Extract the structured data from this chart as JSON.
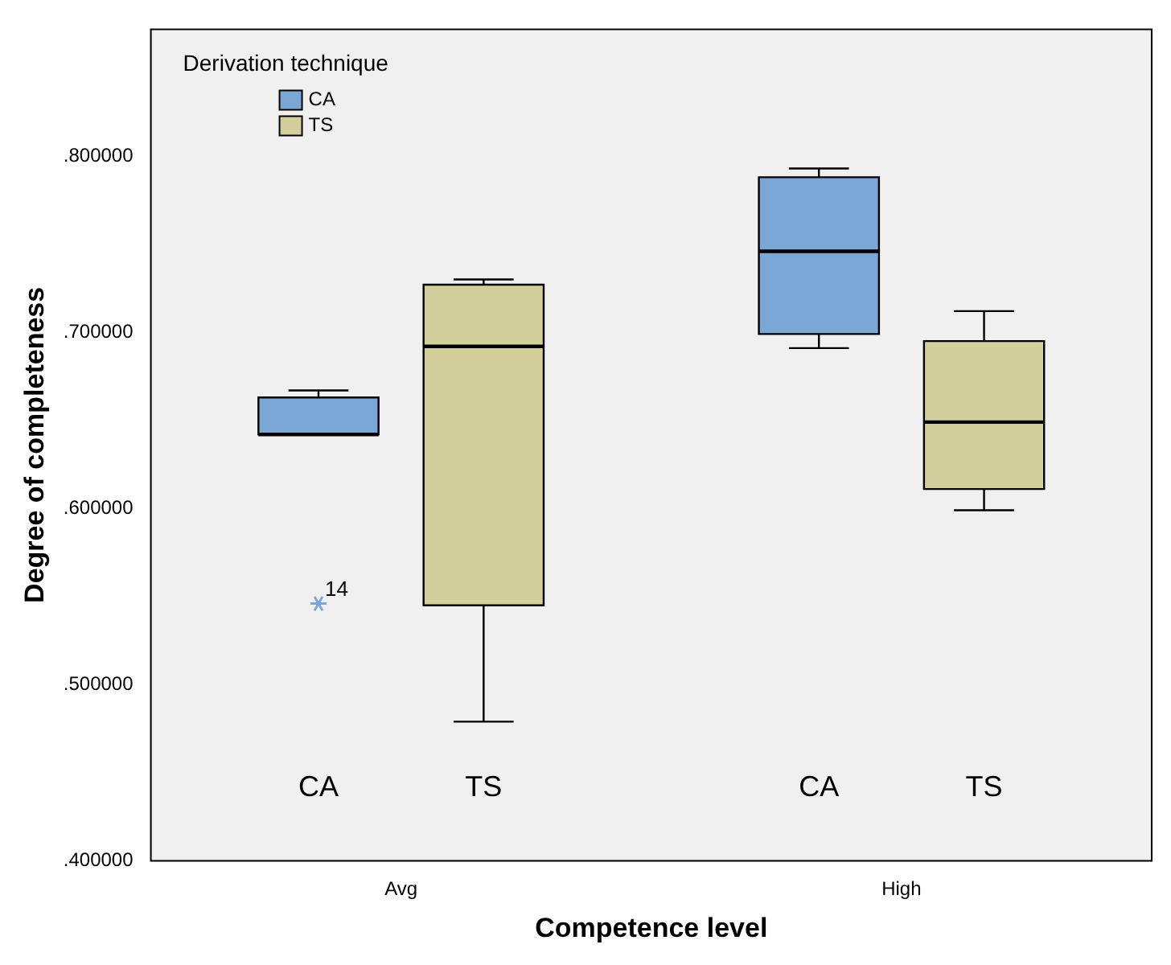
{
  "chart_data": {
    "type": "box",
    "xlabel": "Competence level",
    "ylabel": "Degree of completeness",
    "legend_title": "Derivation technique",
    "legend": "top left",
    "grid": false,
    "categories": [
      "Avg",
      "High"
    ],
    "ylim": [
      0.4,
      0.872
    ],
    "yticks": [
      {
        "value": 0.4,
        "label": ".400000"
      },
      {
        "value": 0.5,
        "label": ".500000"
      },
      {
        "value": 0.6,
        "label": ".600000"
      },
      {
        "value": 0.7,
        "label": ".700000"
      },
      {
        "value": 0.8,
        "label": ".800000"
      }
    ],
    "series": [
      {
        "name": "CA",
        "color": "#7ba7d7",
        "boxes": [
          {
            "low": 0.642,
            "q1": 0.642,
            "median": 0.642,
            "q3": 0.663,
            "high": 0.667,
            "outliers": [
              0.546
            ]
          },
          {
            "low": 0.691,
            "q1": 0.699,
            "median": 0.746,
            "q3": 0.788,
            "high": 0.793
          }
        ]
      },
      {
        "name": "TS",
        "color": "#d3cf9c",
        "boxes": [
          {
            "low": 0.479,
            "q1": 0.545,
            "median": 0.692,
            "q3": 0.727,
            "high": 0.73
          },
          {
            "low": 0.599,
            "q1": 0.611,
            "median": 0.649,
            "q3": 0.695,
            "high": 0.712
          }
        ]
      }
    ],
    "annotations": [
      "14"
    ]
  }
}
